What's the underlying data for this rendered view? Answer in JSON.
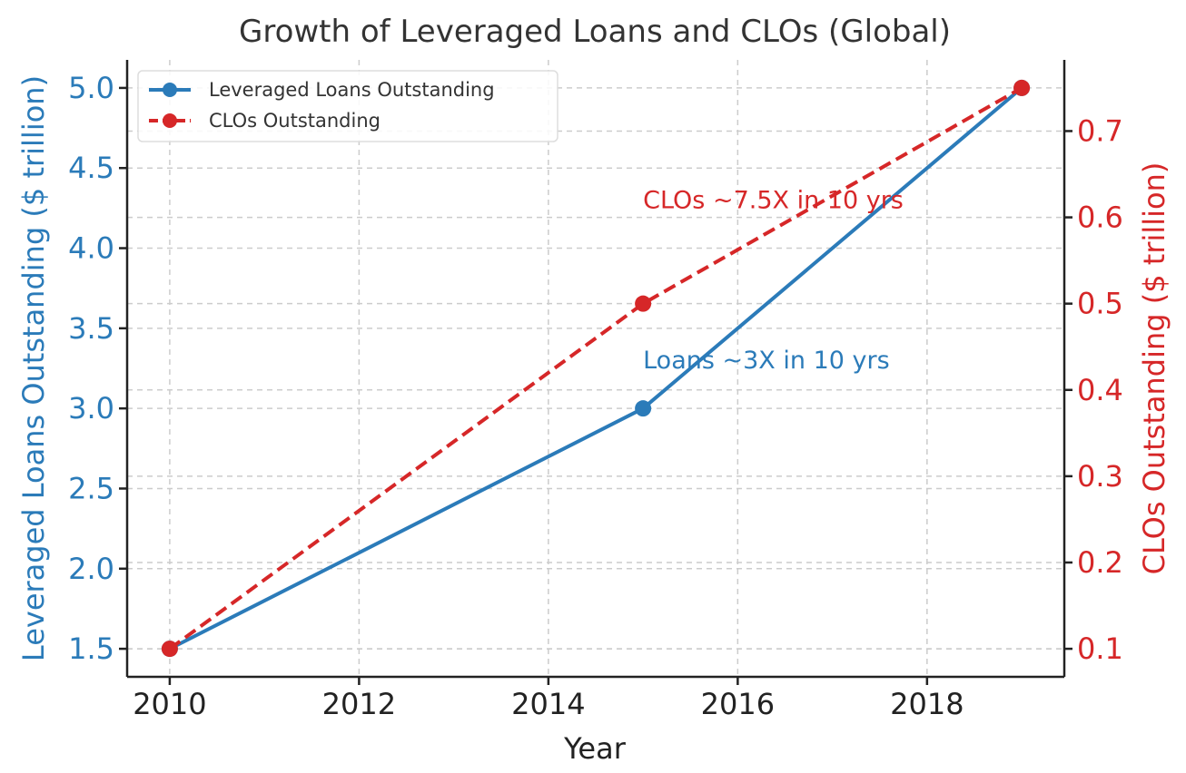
{
  "chart_data": {
    "type": "line",
    "title": "Growth of Leveraged Loans and CLOs (Global)",
    "xlabel": "Year",
    "ylabel_left": "Leveraged Loans Outstanding ($ trillion)",
    "ylabel_right": "CLOs Outstanding ($ trillion)",
    "x_ticks": [
      2010,
      2012,
      2014,
      2016,
      2018
    ],
    "y_left_ticks": [
      1.5,
      2.0,
      2.5,
      3.0,
      3.5,
      4.0,
      4.5,
      5.0
    ],
    "y_right_ticks": [
      0.1,
      0.2,
      0.3,
      0.4,
      0.5,
      0.6,
      0.7
    ],
    "xlim": [
      2009.55,
      2019.45
    ],
    "ylim_left": [
      1.325,
      5.175
    ],
    "ylim_right": [
      0.0675,
      0.7825
    ],
    "grid": true,
    "legend_position": "upper-left",
    "series": [
      {
        "name": "Leveraged Loans Outstanding",
        "axis": "left",
        "color": "#2b7bb9",
        "style": "solid",
        "x": [
          2010,
          2015,
          2019
        ],
        "y": [
          1.5,
          3.0,
          5.0
        ]
      },
      {
        "name": "CLOs Outstanding",
        "axis": "right",
        "color": "#d62728",
        "style": "dashed",
        "x": [
          2010,
          2015,
          2019
        ],
        "y": [
          0.1,
          0.5,
          0.75
        ]
      }
    ],
    "annotations": [
      {
        "text": "CLOs ~7.5X in 10 yrs",
        "x": 2015,
        "y_left": 4.25,
        "color": "#d62728"
      },
      {
        "text": "Loans ~3X in 10 yrs",
        "x": 2015,
        "y_left": 3.25,
        "color": "#2b7bb9"
      }
    ]
  }
}
